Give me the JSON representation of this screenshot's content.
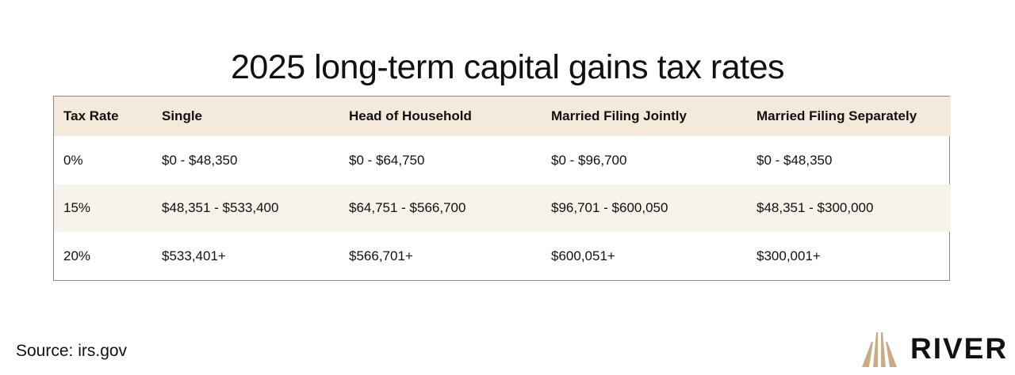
{
  "title": "2025 long-term capital gains tax rates",
  "table": {
    "headers": [
      "Tax Rate",
      "Single",
      "Head of Household",
      "Married Filing Jointly",
      "Married Filing Separately"
    ],
    "rows": [
      [
        "0%",
        "$0 - $48,350",
        "$0 - $64,750",
        "$0 - $96,700",
        "$0 - $48,350"
      ],
      [
        "15%",
        "$48,351 - $533,400",
        "$64,751 - $566,700",
        "$96,701 - $600,050",
        "$48,351 - $300,000"
      ],
      [
        "20%",
        "$533,401+",
        "$566,701+",
        "$600,051+",
        "$300,001+"
      ]
    ]
  },
  "footer": {
    "source": "Source: irs.gov",
    "brand": "RIVER",
    "brand_icon": "river-road-icon"
  },
  "colors": {
    "header_bg": "#f3eadb",
    "alt_row_bg": "#f7f2ea",
    "logo_gold": "#c9ad82"
  }
}
